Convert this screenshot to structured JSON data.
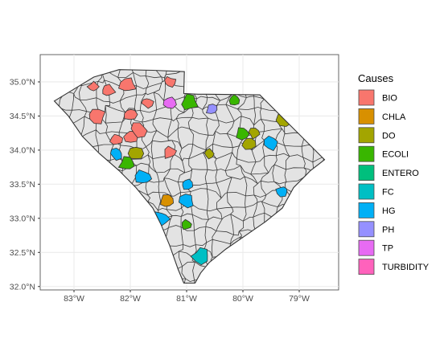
{
  "chart_data": {
    "type": "choropleth-map",
    "title": "",
    "xlabel": "",
    "ylabel": "",
    "xlim": [
      -83.6,
      -78.3
    ],
    "ylim": [
      31.95,
      35.4
    ],
    "grid": true,
    "legend_position": "right",
    "x_ticks": [
      {
        "value": -83,
        "label": "83°W"
      },
      {
        "value": -82,
        "label": "82°W"
      },
      {
        "value": -81,
        "label": "81°W"
      },
      {
        "value": -80,
        "label": "80°W"
      },
      {
        "value": -79,
        "label": "79°W"
      }
    ],
    "y_ticks": [
      {
        "value": 32.0,
        "label": "32.0°N"
      },
      {
        "value": 32.5,
        "label": "32.5°N"
      },
      {
        "value": 33.0,
        "label": "33.0°N"
      },
      {
        "value": 33.5,
        "label": "33.5°N"
      },
      {
        "value": 34.0,
        "label": "34.0°N"
      },
      {
        "value": 34.5,
        "label": "34.5°N"
      },
      {
        "value": 35.0,
        "label": "35.0°N"
      }
    ],
    "legend": {
      "title": "Causes",
      "items": [
        {
          "label": "BIO",
          "color": "#F8766D"
        },
        {
          "label": "CHLA",
          "color": "#D89000"
        },
        {
          "label": "DO",
          "color": "#A3A500"
        },
        {
          "label": "ECOLI",
          "color": "#39B600"
        },
        {
          "label": "ENTERO",
          "color": "#00BF7D"
        },
        {
          "label": "FC",
          "color": "#00BFC4"
        },
        {
          "label": "HG",
          "color": "#00B0F6"
        },
        {
          "label": "PH",
          "color": "#9590FF"
        },
        {
          "label": "TP",
          "color": "#E76BF3"
        },
        {
          "label": "TURBIDITY",
          "color": "#FF62BC"
        }
      ]
    },
    "state_outline": [
      [
        -83.35,
        34.72
      ],
      [
        -82.95,
        34.92
      ],
      [
        -82.65,
        35.07
      ],
      [
        -82.2,
        35.18
      ],
      [
        -81.6,
        35.17
      ],
      [
        -81.04,
        35.15
      ],
      [
        -81.05,
        34.83
      ],
      [
        -80.8,
        34.82
      ],
      [
        -80.65,
        34.82
      ],
      [
        -79.7,
        34.81
      ],
      [
        -78.55,
        33.86
      ],
      [
        -78.8,
        33.7
      ],
      [
        -79.1,
        33.45
      ],
      [
        -79.3,
        33.15
      ],
      [
        -79.6,
        32.95
      ],
      [
        -79.95,
        32.75
      ],
      [
        -80.3,
        32.55
      ],
      [
        -80.6,
        32.35
      ],
      [
        -80.75,
        32.2
      ],
      [
        -80.85,
        32.05
      ],
      [
        -81.05,
        32.05
      ],
      [
        -81.15,
        32.25
      ],
      [
        -81.3,
        32.6
      ],
      [
        -81.45,
        32.9
      ],
      [
        -81.6,
        33.15
      ],
      [
        -81.9,
        33.45
      ],
      [
        -82.2,
        33.7
      ],
      [
        -82.55,
        33.95
      ],
      [
        -82.85,
        34.2
      ],
      [
        -83.1,
        34.5
      ],
      [
        -83.35,
        34.72
      ]
    ],
    "watersheds": [
      {
        "cause": "BIO",
        "lon": -82.65,
        "lat": 34.93
      },
      {
        "cause": "BIO",
        "lon": -82.4,
        "lat": 34.87
      },
      {
        "cause": "BIO",
        "lon": -82.05,
        "lat": 34.95
      },
      {
        "cause": "BIO",
        "lon": -81.7,
        "lat": 34.7
      },
      {
        "cause": "BIO",
        "lon": -82.0,
        "lat": 34.53
      },
      {
        "cause": "BIO",
        "lon": -82.6,
        "lat": 34.5
      },
      {
        "cause": "BIO",
        "lon": -82.25,
        "lat": 34.15
      },
      {
        "cause": "BIO",
        "lon": -82.0,
        "lat": 34.2
      },
      {
        "cause": "BIO",
        "lon": -81.85,
        "lat": 34.3
      },
      {
        "cause": "BIO",
        "lon": -81.3,
        "lat": 35.0
      },
      {
        "cause": "BIO",
        "lon": -81.3,
        "lat": 33.97
      },
      {
        "cause": "DO",
        "lon": -81.9,
        "lat": 33.95
      },
      {
        "cause": "DO",
        "lon": -79.8,
        "lat": 34.25
      },
      {
        "cause": "DO",
        "lon": -79.9,
        "lat": 34.1
      },
      {
        "cause": "DO",
        "lon": -79.25,
        "lat": 34.45
      },
      {
        "cause": "DO",
        "lon": -80.6,
        "lat": 33.95
      },
      {
        "cause": "CHLA",
        "lon": -81.35,
        "lat": 33.25
      },
      {
        "cause": "ECOLI",
        "lon": -80.95,
        "lat": 34.7
      },
      {
        "cause": "ECOLI",
        "lon": -80.15,
        "lat": 34.73
      },
      {
        "cause": "ECOLI",
        "lon": -80.0,
        "lat": 34.25
      },
      {
        "cause": "ECOLI",
        "lon": -82.05,
        "lat": 33.8
      },
      {
        "cause": "ECOLI",
        "lon": -81.0,
        "lat": 32.9
      },
      {
        "cause": "HG",
        "lon": -82.25,
        "lat": 33.95
      },
      {
        "cause": "HG",
        "lon": -81.75,
        "lat": 33.6
      },
      {
        "cause": "HG",
        "lon": -81.0,
        "lat": 33.5
      },
      {
        "cause": "HG",
        "lon": -81.0,
        "lat": 33.25
      },
      {
        "cause": "HG",
        "lon": -81.45,
        "lat": 33.0
      },
      {
        "cause": "HG",
        "lon": -79.3,
        "lat": 33.4
      },
      {
        "cause": "HG",
        "lon": -79.5,
        "lat": 34.1
      },
      {
        "cause": "FC",
        "lon": -80.75,
        "lat": 32.45
      },
      {
        "cause": "PH",
        "lon": -80.55,
        "lat": 34.6
      },
      {
        "cause": "TP",
        "lon": -81.3,
        "lat": 34.7
      }
    ]
  }
}
